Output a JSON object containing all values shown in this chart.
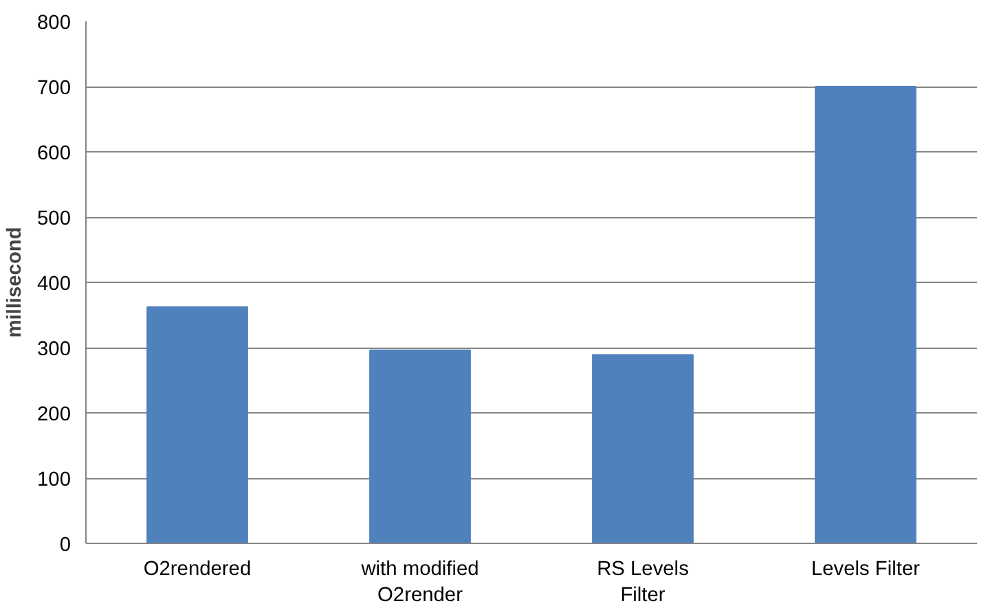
{
  "chart_data": {
    "type": "bar",
    "ylabel": "millisecond",
    "categories": [
      "O2rendered",
      "with modified O2render",
      "RS Levels Filter",
      "Levels Filter"
    ],
    "values": [
      362,
      296,
      289,
      700
    ],
    "color": "#4f81bd",
    "ylim": [
      0,
      800
    ],
    "yticks": [
      0,
      100,
      200,
      300,
      400,
      500,
      600,
      700,
      800
    ],
    "grid": "y"
  }
}
